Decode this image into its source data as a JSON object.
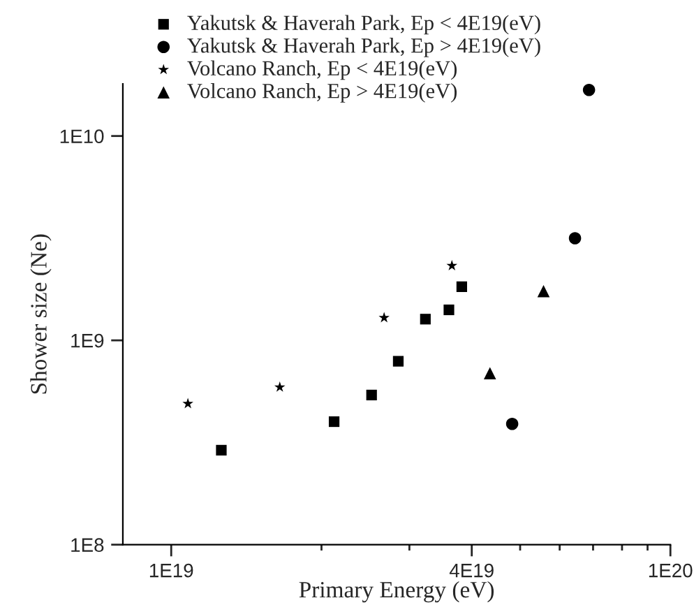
{
  "chart_data": {
    "type": "scatter",
    "xlabel": "Primary Energy (eV)",
    "ylabel": "Shower size (Ne)",
    "log": "xy",
    "grid": false,
    "legend": "top",
    "xlim": [
      8e+18,
      1e+20
    ],
    "ylim": [
      100000000.0,
      18000000000.0
    ],
    "xticks": [
      {
        "value": 1e+19,
        "label": "1E19"
      },
      {
        "value": 2e+19,
        "label": null
      },
      {
        "value": 3e+19,
        "label": null
      },
      {
        "value": 4e+19,
        "label": "4E19"
      },
      {
        "value": 5e+19,
        "label": null
      },
      {
        "value": 6e+19,
        "label": null
      },
      {
        "value": 7e+19,
        "label": null
      },
      {
        "value": 8e+19,
        "label": null
      },
      {
        "value": 9e+19,
        "label": null
      },
      {
        "value": 1e+20,
        "label": "1E20"
      }
    ],
    "yticks": [
      {
        "value": 100000000.0,
        "label": "1E8"
      },
      {
        "value": 1000000000.0,
        "label": "1E9"
      },
      {
        "value": 10000000000.0,
        "label": "1E10"
      }
    ],
    "series": [
      {
        "name": "Yakutsk & Haverah Park, Ep < 4E19(eV)",
        "color": "#000000",
        "marker": "square",
        "x": [
          1.26e+19,
          2.12e+19,
          2.52e+19,
          2.85e+19,
          3.23e+19,
          3.6e+19,
          3.82e+19
        ],
        "values": [
          290000000.0,
          400000000.0,
          540000000.0,
          790000000.0,
          1270000000.0,
          1410000000.0,
          1830000000.0
        ]
      },
      {
        "name": "Yakutsk & Haverah Park, Ep > 4E19(eV)",
        "color": "#000000",
        "marker": "circle",
        "x": [
          4.82e+19,
          6.44e+19,
          6.87e+19
        ],
        "values": [
          390000000.0,
          3160000000.0,
          16800000000.0
        ]
      },
      {
        "name": "Volcano Ranch, Ep < 4E19(eV)",
        "color": "#000000",
        "marker": "star",
        "x": [
          1.08e+19,
          1.65e+19,
          2.67e+19,
          3.65e+19
        ],
        "values": [
          490000000.0,
          590000000.0,
          1290000000.0,
          2320000000.0
        ]
      },
      {
        "name": "Volcano Ranch, Ep > 4E19(eV)",
        "color": "#000000",
        "marker": "triangle",
        "x": [
          4.35e+19,
          5.57e+19
        ],
        "values": [
          690000000.0,
          1740000000.0
        ]
      }
    ]
  }
}
